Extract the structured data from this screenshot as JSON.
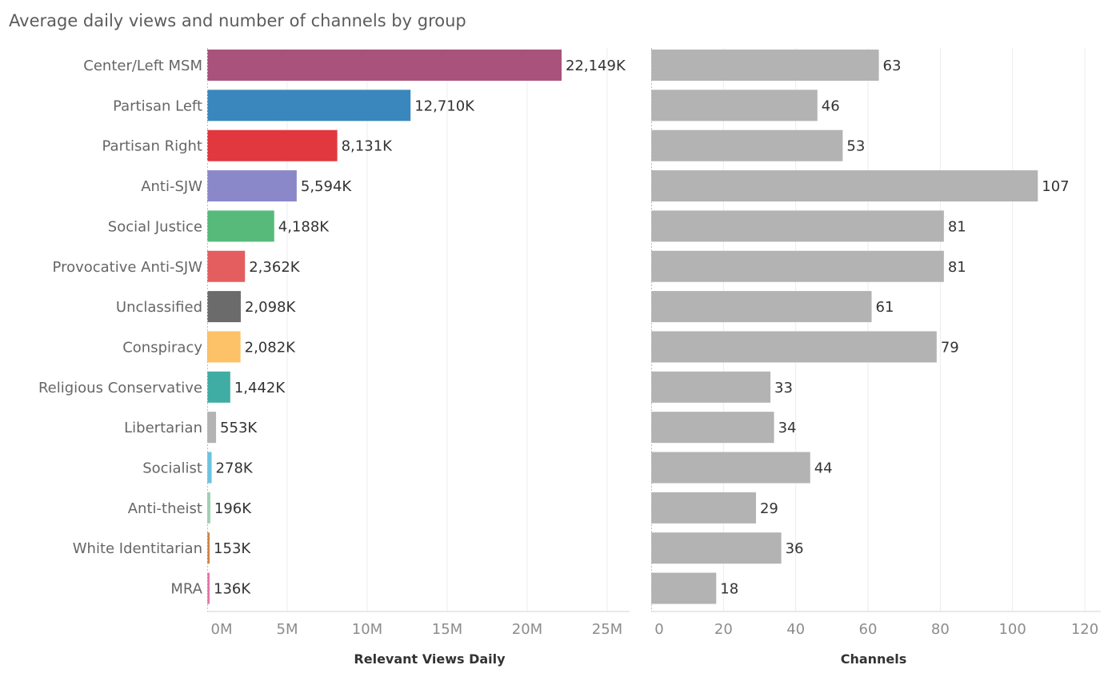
{
  "chart_data": {
    "type": "bar",
    "orientation": "horizontal",
    "title": "Average daily views and number of channels by group",
    "categories": [
      "Center/Left MSM",
      "Partisan Left",
      "Partisan Right",
      "Anti-SJW",
      "Social Justice",
      "Provocative Anti-SJW",
      "Unclassified",
      "Conspiracy",
      "Religious Conservative",
      "Libertarian",
      "Socialist",
      "Anti-theist",
      "White Identitarian",
      "MRA"
    ],
    "panels": [
      {
        "name": "views",
        "xlabel": "Relevant Views Daily",
        "xlim": [
          0,
          25000
        ],
        "unit": "thousands",
        "ticks": [
          0,
          5000,
          10000,
          15000,
          20000,
          25000
        ],
        "tick_labels": [
          "0M",
          "5M",
          "10M",
          "15M",
          "20M",
          "25M"
        ],
        "values": [
          22149,
          12710,
          8131,
          5594,
          4188,
          2362,
          2098,
          2082,
          1442,
          553,
          278,
          196,
          153,
          136
        ],
        "value_labels": [
          "22,149K",
          "12,710K",
          "8,131K",
          "5,594K",
          "4,188K",
          "2,362K",
          "2,098K",
          "2,082K",
          "1,442K",
          "553K",
          "278K",
          "196K",
          "153K",
          "136K"
        ],
        "colors": [
          "#a8527c",
          "#3a87bd",
          "#e0383e",
          "#8b88c9",
          "#57ba7a",
          "#e45e60",
          "#6b6b6b",
          "#fdc168",
          "#40ada4",
          "#b3b3b3",
          "#6cc3e1",
          "#9dd1b2",
          "#d28443",
          "#e872a8"
        ]
      },
      {
        "name": "channels",
        "xlabel": "Channels",
        "xlim": [
          0,
          120
        ],
        "ticks": [
          0,
          20,
          40,
          60,
          80,
          100,
          120
        ],
        "tick_labels": [
          "0",
          "20",
          "40",
          "60",
          "80",
          "100",
          "120"
        ],
        "values": [
          63,
          46,
          53,
          107,
          81,
          81,
          61,
          79,
          33,
          34,
          44,
          29,
          36,
          18
        ],
        "value_labels": [
          "63",
          "46",
          "53",
          "107",
          "81",
          "81",
          "61",
          "79",
          "33",
          "34",
          "44",
          "29",
          "36",
          "18"
        ],
        "bar_color": "#b3b3b3"
      }
    ]
  }
}
